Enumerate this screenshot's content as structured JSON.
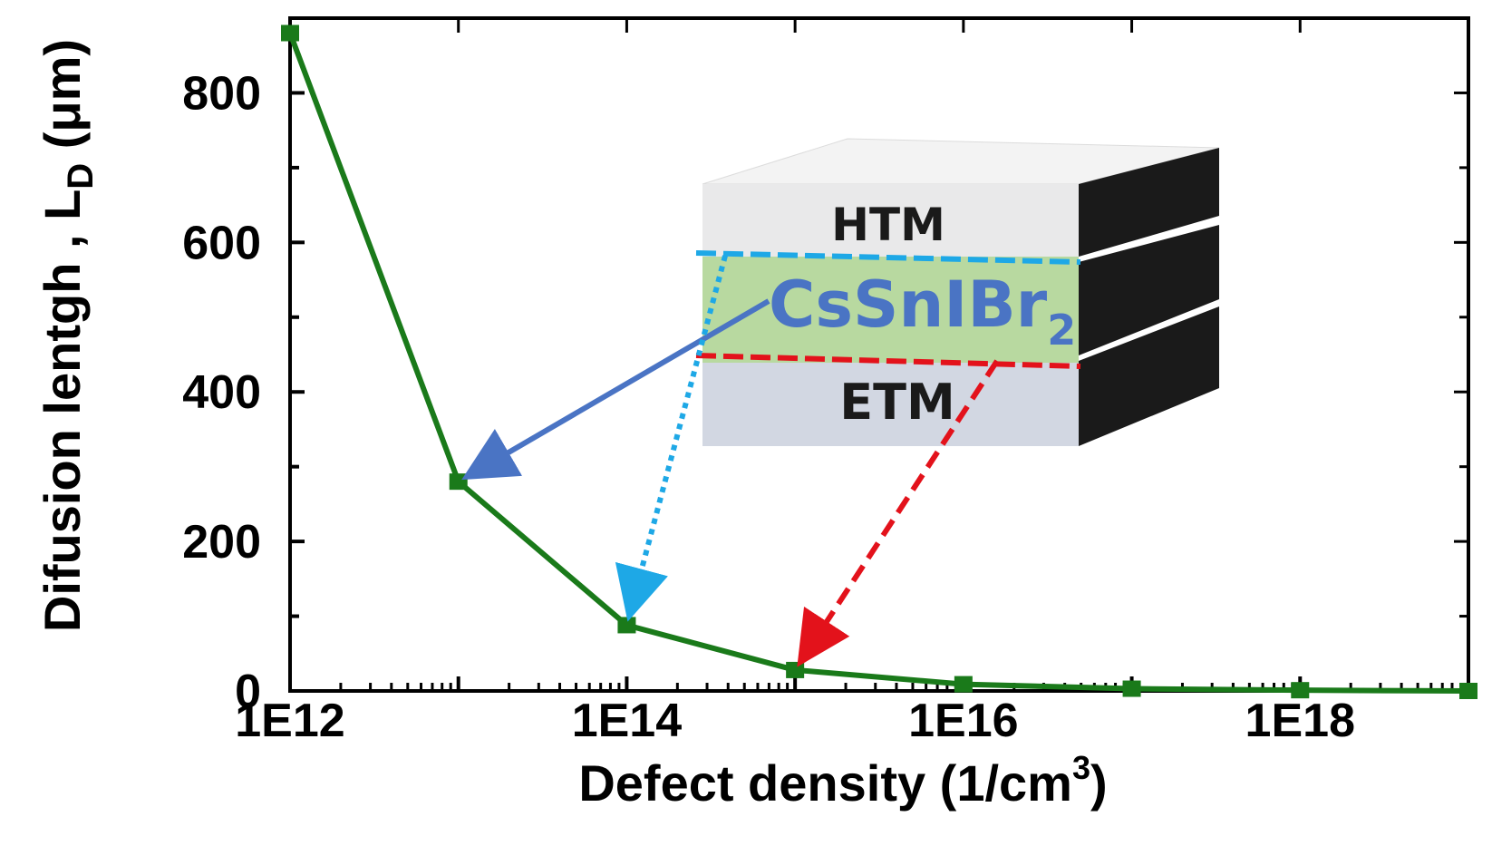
{
  "chart_data": {
    "type": "line",
    "x_scale": "log",
    "x": [
      1000000000000.0,
      10000000000000.0,
      100000000000000.0,
      1000000000000000.0,
      1e+16,
      1e+17,
      1e+18,
      1e+19
    ],
    "series": [
      {
        "values": [
          880,
          280,
          88,
          28,
          9,
          3,
          1,
          0
        ],
        "color": "#1a7a1a",
        "marker": "square"
      }
    ],
    "xlabel": "Defect density (1/cm",
    "xlabel_sup": "3",
    "xlabel_end": ")",
    "ylabel": "Difusion lentgh , L",
    "ylabel_sub": "D",
    "ylabel_unit": " (μm)",
    "xlim": [
      1000000000000.0,
      1e+19
    ],
    "ylim": [
      0,
      900
    ],
    "x_ticks": [
      {
        "value": 1000000000000.0,
        "label": "1E12"
      },
      {
        "value": 100000000000000.0,
        "label": "1E14"
      },
      {
        "value": 1e+16,
        "label": "1E16"
      },
      {
        "value": 1e+18,
        "label": "1E18"
      }
    ],
    "y_ticks": [
      0,
      200,
      400,
      600,
      800
    ],
    "grid": false
  },
  "inset": {
    "layers": [
      {
        "label": "HTM",
        "color": "#e9e9ea"
      },
      {
        "label": "CsSnIBr",
        "subscript": "2",
        "color": "#b8d9a0",
        "text_color": "#4a74c4"
      },
      {
        "label": "ETM",
        "color": "#d2d7e2"
      }
    ],
    "side_color": "#1a1a1a",
    "interfaces": [
      {
        "style": "dashed",
        "color": "#1ea8e6"
      },
      {
        "style": "dashed",
        "color": "#e3121b"
      }
    ],
    "arrows": [
      {
        "from": "CsSnIBr2",
        "to_x": 10000000000000.0,
        "to_y": 280,
        "color": "#4a74c4",
        "style": "solid"
      },
      {
        "from": "HTM interface",
        "to_x": 100000000000000.0,
        "to_y": 88,
        "color": "#1ea8e6",
        "style": "dotted"
      },
      {
        "from": "ETM interface",
        "to_x": 1000000000000000.0,
        "to_y": 28,
        "color": "#e3121b",
        "style": "dashed"
      }
    ]
  }
}
